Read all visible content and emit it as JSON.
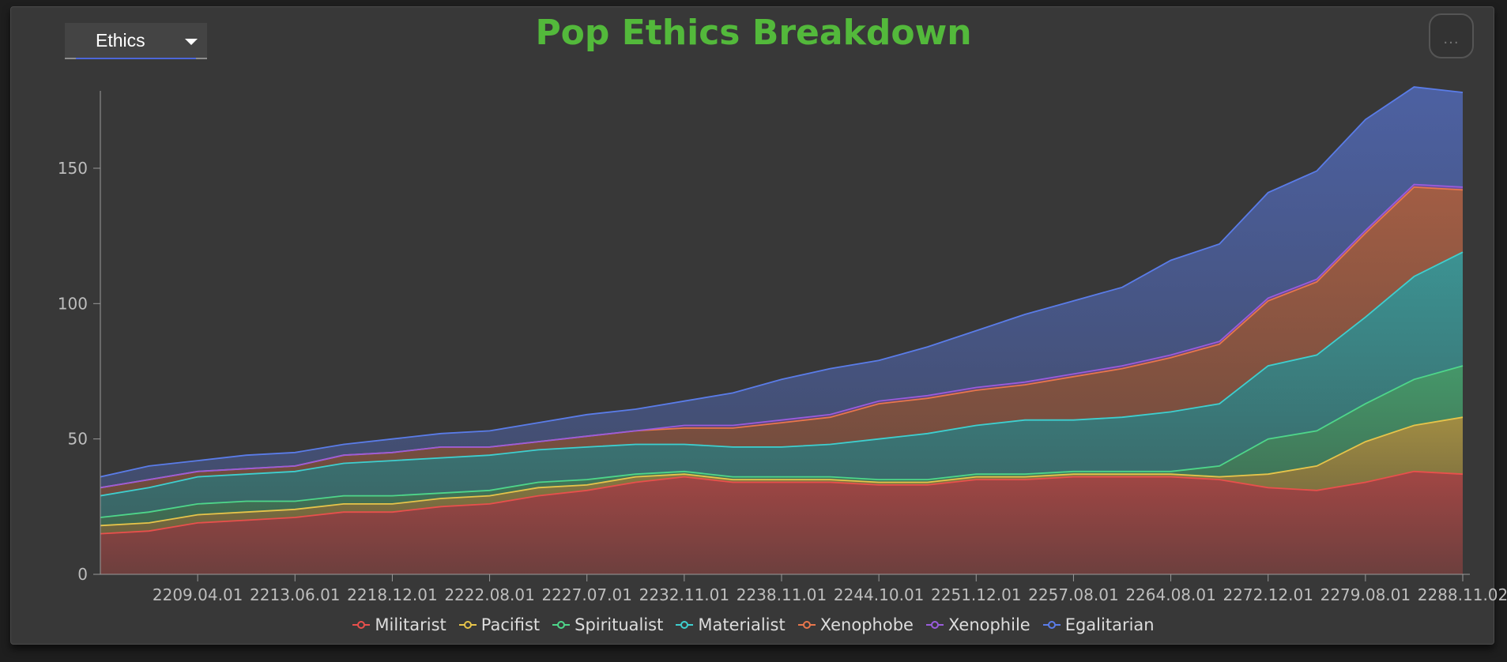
{
  "header": {
    "dropdown_value": "Ethics",
    "menu_dots": "...",
    "title": "Pop Ethics Breakdown"
  },
  "chart_data": {
    "type": "area",
    "title": "Pop Ethics Breakdown",
    "xlabel": "",
    "ylabel": "",
    "stacked": true,
    "ylim": [
      0,
      178
    ],
    "yticks": [
      0,
      50,
      100,
      150
    ],
    "grid": false,
    "legend_position": "bottom-center",
    "x": [
      "2205.06.01",
      "2207.03.01",
      "2209.04.01",
      "2211.05.01",
      "2213.06.01",
      "2216.03.01",
      "2218.12.01",
      "2220.06.01",
      "2222.08.01",
      "2225.01.01",
      "2227.07.01",
      "2230.03.01",
      "2232.11.01",
      "2235.11.01",
      "2238.11.01",
      "2241.10.01",
      "2244.10.01",
      "2248.05.01",
      "2251.12.01",
      "2254.10.01",
      "2257.08.01",
      "2261.02.01",
      "2264.08.01",
      "2268.10.01",
      "2272.12.01",
      "2276.04.01",
      "2279.08.01",
      "2284.03.01",
      "2288.11.02"
    ],
    "x_tick_labels": [
      "2209.04.01",
      "2213.06.01",
      "2218.12.01",
      "2222.08.01",
      "2227.07.01",
      "2232.11.01",
      "2238.11.01",
      "2244.10.01",
      "2251.12.01",
      "2257.08.01",
      "2264.08.01",
      "2272.12.01",
      "2279.08.01",
      "2288.11.02"
    ],
    "series": [
      {
        "name": "Militarist",
        "color": "#e8504c",
        "values": [
          15,
          16,
          19,
          20,
          21,
          23,
          23,
          25,
          26,
          29,
          31,
          34,
          36,
          34,
          34,
          34,
          33,
          33,
          35,
          35,
          36,
          36,
          36,
          35,
          32,
          31,
          34,
          38,
          37
        ]
      },
      {
        "name": "Pacifist",
        "color": "#e6c44a",
        "values": [
          3,
          3,
          3,
          3,
          3,
          3,
          3,
          3,
          3,
          3,
          2,
          2,
          1,
          1,
          1,
          1,
          1,
          1,
          1,
          1,
          1,
          1,
          1,
          1,
          5,
          9,
          15,
          17,
          21
        ]
      },
      {
        "name": "Spiritualist",
        "color": "#4ed68a",
        "values": [
          3,
          4,
          4,
          4,
          3,
          3,
          3,
          2,
          2,
          2,
          2,
          1,
          1,
          1,
          1,
          1,
          1,
          1,
          1,
          1,
          1,
          1,
          1,
          4,
          13,
          13,
          14,
          17,
          19
        ]
      },
      {
        "name": "Materialist",
        "color": "#3ecfcf",
        "values": [
          8,
          9,
          10,
          10,
          11,
          12,
          13,
          13,
          13,
          12,
          12,
          11,
          10,
          11,
          11,
          12,
          15,
          17,
          18,
          20,
          19,
          20,
          22,
          23,
          27,
          28,
          32,
          38,
          42
        ]
      },
      {
        "name": "Xenophobe",
        "color": "#e8764c",
        "values": [
          3,
          3,
          2,
          2,
          2,
          3,
          3,
          4,
          3,
          3,
          4,
          5,
          6,
          7,
          9,
          10,
          13,
          13,
          13,
          13,
          16,
          18,
          20,
          22,
          24,
          27,
          31,
          33,
          23
        ]
      },
      {
        "name": "Xenophile",
        "color": "#9a5cdc",
        "values": [
          0,
          0,
          0,
          0,
          0,
          0,
          0,
          0,
          0,
          0,
          0,
          0,
          1,
          1,
          1,
          1,
          1,
          1,
          1,
          1,
          1,
          1,
          1,
          1,
          1,
          1,
          1,
          1,
          1
        ]
      },
      {
        "name": "Egalitarian",
        "color": "#5a7ce8",
        "values": [
          4,
          5,
          4,
          5,
          5,
          4,
          5,
          5,
          6,
          7,
          8,
          8,
          9,
          12,
          15,
          17,
          15,
          18,
          21,
          25,
          27,
          29,
          35,
          36,
          39,
          40,
          41,
          36,
          35
        ]
      }
    ]
  }
}
